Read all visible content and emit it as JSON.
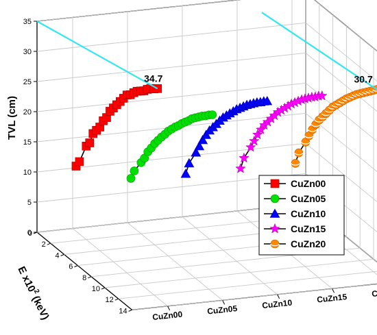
{
  "chart_data": {
    "type": "line",
    "x_axis": {
      "label": "E x10",
      "sup": "2",
      "unit": "(keV)",
      "range": [
        0,
        14
      ],
      "ticks": [
        "0",
        "2",
        "4",
        "6",
        "8",
        "10",
        "12",
        "14"
      ]
    },
    "y_axis": {
      "label": "TVL (cm)",
      "range": [
        0,
        35
      ],
      "ticks": [
        "0",
        "5",
        "10",
        "15",
        "20",
        "25",
        "30",
        "35"
      ]
    },
    "categories": [
      "CuZn00",
      "CuZn05",
      "CuZn10",
      "CuZn15",
      "CuZn20"
    ],
    "series": [
      {
        "name": "CuZn00",
        "color": "#ff0000",
        "marker": "square",
        "x": [
          0.5,
          1.0,
          2.0,
          2.5,
          3.0,
          3.5,
          4.0,
          4.5,
          5.0,
          5.5,
          6.0,
          6.5,
          7.0,
          7.5,
          8.0,
          8.5,
          9.0,
          9.5,
          10.0,
          10.5,
          11.0,
          11.5,
          12.0,
          12.5
        ],
        "values": [
          10.8,
          12.0,
          15.5,
          16.5,
          18.5,
          19.5,
          20.5,
          22.0,
          23.0,
          24.5,
          25.5,
          26.5,
          27.5,
          28.5,
          29.5,
          30.0,
          30.8,
          31.5,
          32.0,
          32.5,
          33.2,
          33.8,
          34.2,
          34.7
        ]
      },
      {
        "name": "CuZn05",
        "color": "#00e000",
        "marker": "circle",
        "x": [
          0.5,
          1.0,
          2.0,
          2.5,
          3.0,
          3.5,
          4.0,
          4.5,
          5.0,
          5.5,
          6.0,
          6.5,
          7.0,
          7.5,
          8.0,
          8.5,
          9.0,
          9.5,
          10.0,
          10.5,
          11.0,
          11.5,
          12.0,
          12.5
        ],
        "values": [
          7.8,
          9.5,
          11.8,
          13.0,
          14.5,
          15.6,
          16.8,
          17.8,
          18.8,
          19.7,
          20.7,
          21.5,
          22.3,
          23.0,
          23.8,
          24.5,
          25.2,
          26.0,
          26.6,
          27.2,
          27.8,
          28.3,
          28.9,
          29.4
        ]
      },
      {
        "name": "CuZn10",
        "color": "#0000ff",
        "marker": "triangle",
        "x": [
          0.5,
          1.0,
          2.0,
          2.5,
          3.0,
          3.5,
          4.0,
          4.5,
          5.0,
          5.5,
          6.0,
          6.5,
          7.0,
          7.5,
          8.0,
          8.5,
          9.0,
          9.5,
          10.0,
          10.5,
          11.0,
          11.5,
          12.0,
          12.5
        ],
        "values": [
          7.6,
          9.8,
          12.5,
          14.0,
          15.5,
          16.8,
          18.0,
          19.0,
          20.0,
          21.0,
          22.0,
          22.8,
          23.6,
          24.4,
          25.2,
          25.9,
          26.6,
          27.3,
          27.9,
          28.5,
          29.1,
          29.6,
          30.2,
          30.7
        ]
      },
      {
        "name": "CuZn15",
        "color": "#ff00ff",
        "marker": "star",
        "x": [
          0.5,
          1.0,
          2.0,
          2.5,
          3.0,
          3.5,
          4.0,
          4.5,
          5.0,
          5.5,
          6.0,
          6.5,
          7.0,
          7.5,
          8.0,
          8.5,
          9.0,
          9.5,
          10.0,
          10.5,
          11.0,
          11.5,
          12.0,
          12.5
        ],
        "values": [
          7.5,
          9.7,
          12.4,
          13.9,
          15.4,
          16.7,
          17.9,
          18.9,
          19.9,
          20.9,
          21.9,
          22.7,
          23.5,
          24.3,
          25.1,
          25.8,
          26.5,
          27.2,
          27.8,
          28.4,
          29.0,
          29.5,
          30.1,
          30.6
        ]
      },
      {
        "name": "CuZn20",
        "color": "#ff8800",
        "marker": "sphere",
        "x": [
          0.5,
          1.0,
          2.0,
          2.5,
          3.0,
          3.5,
          4.0,
          4.5,
          5.0,
          5.5,
          6.0,
          6.5,
          7.0,
          7.5,
          8.0,
          8.5,
          9.0,
          9.5,
          10.0,
          10.5,
          11.0,
          11.5,
          12.0,
          12.5
        ],
        "values": [
          7.4,
          9.6,
          12.3,
          13.8,
          15.3,
          16.6,
          17.8,
          18.8,
          19.8,
          20.8,
          21.8,
          22.6,
          23.4,
          24.2,
          25.0,
          25.7,
          26.4,
          27.1,
          27.7,
          28.3,
          28.9,
          29.5,
          30.1,
          30.7
        ]
      }
    ],
    "annotations": [
      {
        "text": "34.7",
        "series": "CuZn00"
      },
      {
        "text": "30.7",
        "series": "CuZn20"
      }
    ],
    "reference_line_color": "#33e6f0",
    "legend": {
      "placement": "right",
      "entries": [
        "CuZn00",
        "CuZn05",
        "CuZn10",
        "CuZn15",
        "CuZn20"
      ]
    },
    "grid": true
  }
}
